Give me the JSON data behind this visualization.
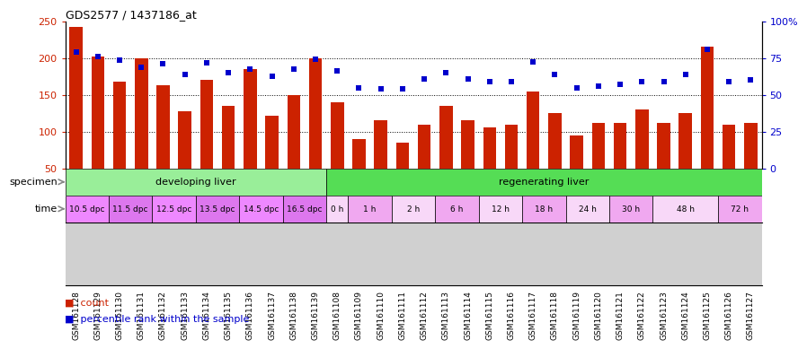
{
  "title": "GDS2577 / 1437186_at",
  "samples": [
    "GSM161128",
    "GSM161129",
    "GSM161130",
    "GSM161131",
    "GSM161132",
    "GSM161133",
    "GSM161134",
    "GSM161135",
    "GSM161136",
    "GSM161137",
    "GSM161138",
    "GSM161139",
    "GSM161108",
    "GSM161109",
    "GSM161110",
    "GSM161111",
    "GSM161112",
    "GSM161113",
    "GSM161114",
    "GSM161115",
    "GSM161116",
    "GSM161117",
    "GSM161118",
    "GSM161119",
    "GSM161120",
    "GSM161121",
    "GSM161122",
    "GSM161123",
    "GSM161124",
    "GSM161125",
    "GSM161126",
    "GSM161127"
  ],
  "counts": [
    242,
    202,
    168,
    200,
    163,
    128,
    171,
    135,
    185,
    122,
    150,
    200,
    140,
    90,
    115,
    85,
    110,
    135,
    115,
    106,
    110,
    155,
    125,
    95,
    112,
    112,
    130,
    112,
    125,
    215,
    110,
    112
  ],
  "percentiles": [
    208,
    202,
    197,
    188,
    192,
    178,
    193,
    180,
    185,
    175,
    185,
    198,
    183,
    160,
    158,
    158,
    172,
    180,
    172,
    168,
    168,
    195,
    178,
    160,
    162,
    164,
    168,
    168,
    178,
    212,
    168,
    170
  ],
  "bar_color": "#cc2200",
  "dot_color": "#0000cc",
  "bg_color": "#ffffff",
  "tick_area_color": "#d0d0d0",
  "ylim_left": [
    50,
    250
  ],
  "ylim_right": [
    0,
    100
  ],
  "yticks_left": [
    50,
    100,
    150,
    200,
    250
  ],
  "yticks_right": [
    0,
    25,
    50,
    75,
    100
  ],
  "ytick_labels_right": [
    "0",
    "25",
    "50",
    "75",
    "100%"
  ],
  "grid_values": [
    100,
    150,
    200
  ],
  "specimen_groups": [
    {
      "label": "developing liver",
      "color": "#99ee99",
      "start": 0,
      "end": 12
    },
    {
      "label": "regenerating liver",
      "color": "#55dd55",
      "start": 12,
      "end": 32
    }
  ],
  "time_groups": [
    {
      "label": "10.5 dpc",
      "start": 0,
      "end": 2,
      "color": "#ee88ff"
    },
    {
      "label": "11.5 dpc",
      "start": 2,
      "end": 4,
      "color": "#dd77ee"
    },
    {
      "label": "12.5 dpc",
      "start": 4,
      "end": 6,
      "color": "#ee88ff"
    },
    {
      "label": "13.5 dpc",
      "start": 6,
      "end": 8,
      "color": "#dd77ee"
    },
    {
      "label": "14.5 dpc",
      "start": 8,
      "end": 10,
      "color": "#ee88ff"
    },
    {
      "label": "16.5 dpc",
      "start": 10,
      "end": 12,
      "color": "#dd77ee"
    },
    {
      "label": "0 h",
      "start": 12,
      "end": 13,
      "color": "#f8d8f8"
    },
    {
      "label": "1 h",
      "start": 13,
      "end": 15,
      "color": "#f0a8f0"
    },
    {
      "label": "2 h",
      "start": 15,
      "end": 17,
      "color": "#f8d8f8"
    },
    {
      "label": "6 h",
      "start": 17,
      "end": 19,
      "color": "#f0a8f0"
    },
    {
      "label": "12 h",
      "start": 19,
      "end": 21,
      "color": "#f8d8f8"
    },
    {
      "label": "18 h",
      "start": 21,
      "end": 23,
      "color": "#f0a8f0"
    },
    {
      "label": "24 h",
      "start": 23,
      "end": 25,
      "color": "#f8d8f8"
    },
    {
      "label": "30 h",
      "start": 25,
      "end": 27,
      "color": "#f0a8f0"
    },
    {
      "label": "48 h",
      "start": 27,
      "end": 30,
      "color": "#f8d8f8"
    },
    {
      "label": "72 h",
      "start": 30,
      "end": 32,
      "color": "#f0a8f0"
    }
  ],
  "legend_count_label": "count",
  "legend_percentile_label": "percentile rank within the sample",
  "specimen_label": "specimen",
  "time_label": "time",
  "n_samples": 32
}
